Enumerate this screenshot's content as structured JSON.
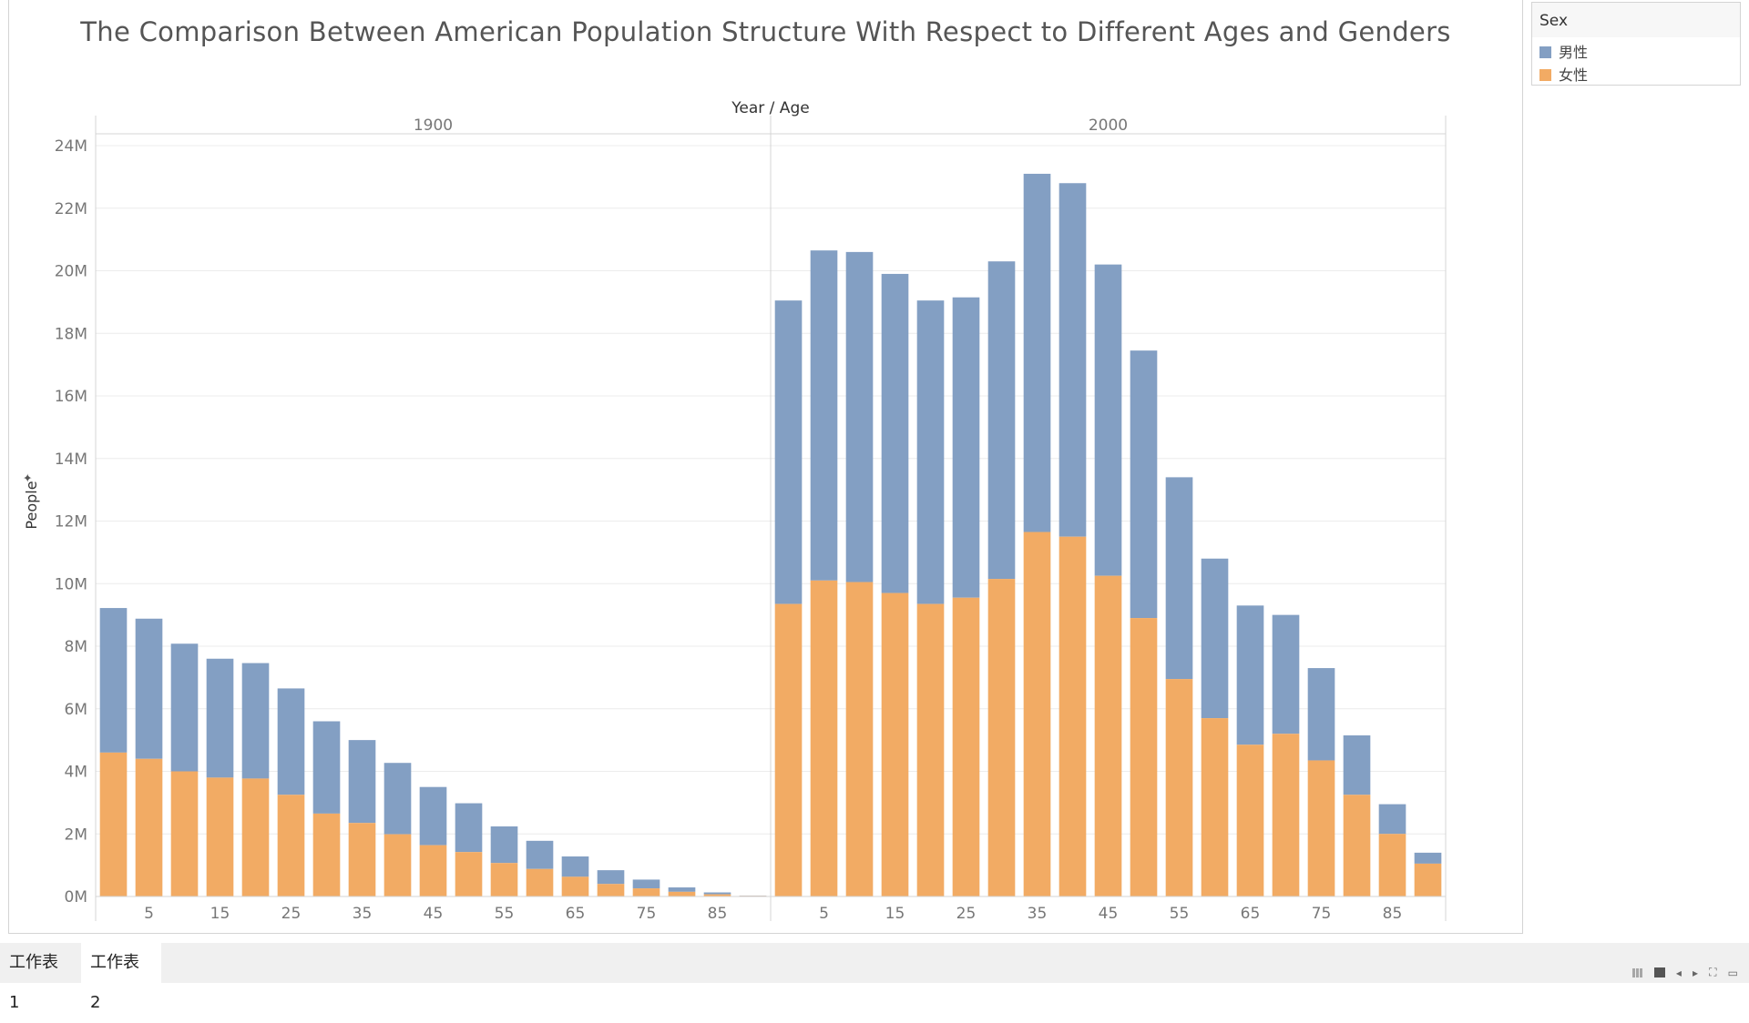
{
  "chart_data": {
    "type": "bar",
    "stacked": true,
    "title": "The Comparison Between American Population Structure With Respect to Different Ages and Genders",
    "xlabel": "Year / Age",
    "ylabel": "People",
    "ylim": [
      0,
      24000000
    ],
    "y_ticks": [
      {
        "value": 0,
        "label": "0M"
      },
      {
        "value": 2000000,
        "label": "2M"
      },
      {
        "value": 4000000,
        "label": "4M"
      },
      {
        "value": 6000000,
        "label": "6M"
      },
      {
        "value": 8000000,
        "label": "8M"
      },
      {
        "value": 10000000,
        "label": "10M"
      },
      {
        "value": 12000000,
        "label": "12M"
      },
      {
        "value": 14000000,
        "label": "14M"
      },
      {
        "value": 16000000,
        "label": "16M"
      },
      {
        "value": 18000000,
        "label": "18M"
      },
      {
        "value": 20000000,
        "label": "20M"
      },
      {
        "value": 22000000,
        "label": "22M"
      },
      {
        "value": 24000000,
        "label": "24M"
      }
    ],
    "ages": [
      0,
      5,
      10,
      15,
      20,
      25,
      30,
      35,
      40,
      45,
      50,
      55,
      60,
      65,
      70,
      75,
      80,
      85,
      90
    ],
    "x_tick_labels": [
      "5",
      "15",
      "25",
      "35",
      "45",
      "55",
      "65",
      "75",
      "85"
    ],
    "x_tick_ages": [
      5,
      15,
      25,
      35,
      45,
      55,
      65,
      75,
      85
    ],
    "panels": [
      {
        "year": "1900",
        "series": [
          {
            "name": "女性",
            "values": [
              4600000,
              4400000,
              4000000,
              3800000,
              3770000,
              3250000,
              2650000,
              2350000,
              1990000,
              1640000,
              1420000,
              1070000,
              880000,
              630000,
              400000,
              260000,
              150000,
              70000,
              20000
            ]
          },
          {
            "name": "男性",
            "values": [
              4620000,
              4480000,
              4080000,
              3800000,
              3690000,
              3400000,
              2950000,
              2650000,
              2280000,
              1860000,
              1560000,
              1170000,
              900000,
              650000,
              440000,
              280000,
              140000,
              60000,
              10000
            ]
          }
        ]
      },
      {
        "year": "2000",
        "series": [
          {
            "name": "女性",
            "values": [
              9350000,
              10100000,
              10050000,
              9700000,
              9350000,
              9550000,
              10150000,
              11650000,
              11500000,
              10250000,
              8900000,
              6950000,
              5700000,
              4850000,
              5200000,
              4350000,
              3250000,
              2000000,
              1050000
            ]
          },
          {
            "name": "男性",
            "values": [
              9700000,
              10550000,
              10550000,
              10200000,
              9700000,
              9600000,
              10150000,
              11450000,
              11300000,
              9950000,
              8550000,
              6450000,
              5100000,
              4450000,
              3800000,
              2950000,
              1900000,
              950000,
              350000
            ]
          }
        ]
      }
    ],
    "legend": {
      "title": "Sex",
      "position": "top-right",
      "entries": [
        {
          "label": "男性",
          "color": "#839fc3"
        },
        {
          "label": "女性",
          "color": "#f2ab64"
        }
      ]
    },
    "grid": true
  },
  "tabs": [
    {
      "label": "工作表 1",
      "active": false
    },
    {
      "label": "工作表 2",
      "active": true
    }
  ],
  "colors": {
    "male": "#839fc3",
    "female": "#f2ab64",
    "grid": "#ececec",
    "axis": "#d4d4d4"
  }
}
